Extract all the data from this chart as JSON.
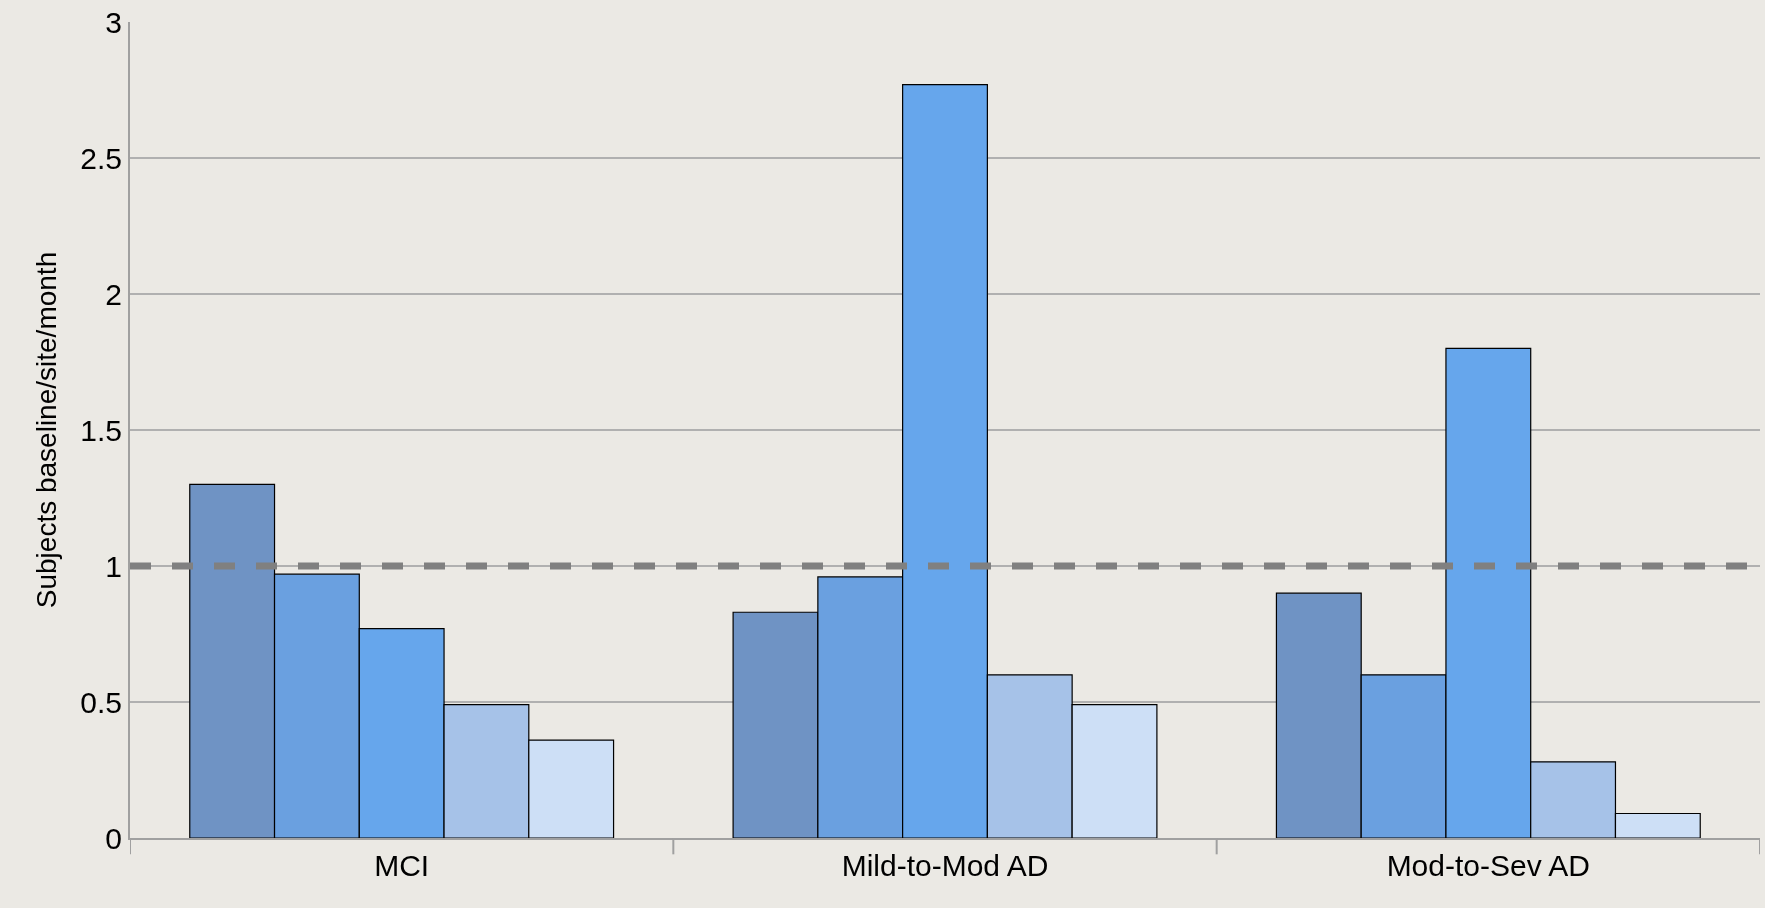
{
  "chart_data": {
    "type": "bar",
    "ylabel": "Subjects baseline/site/month",
    "categories": [
      "MCI",
      "Mild-to-Mod AD",
      "Mod-to-Sev AD"
    ],
    "series": [
      {
        "color": "#6f93c4",
        "values": [
          1.3,
          0.83,
          0.9
        ]
      },
      {
        "color": "#6aa0e0",
        "values": [
          0.97,
          0.96,
          0.6
        ]
      },
      {
        "color": "#66a6ec",
        "values": [
          0.77,
          2.77,
          1.8
        ]
      },
      {
        "color": "#a6c2e8",
        "values": [
          0.49,
          0.6,
          0.28
        ]
      },
      {
        "color": "#cddff6",
        "values": [
          0.36,
          0.49,
          0.09
        ]
      }
    ],
    "ylim": [
      0,
      3
    ],
    "yticks": [
      0,
      0.5,
      1,
      1.5,
      2,
      2.5,
      3
    ],
    "grid": "y",
    "legend": false,
    "ref_lines": [
      {
        "axis": "y",
        "value": 1,
        "color": "#808080",
        "line_style": "dashed"
      }
    ]
  }
}
